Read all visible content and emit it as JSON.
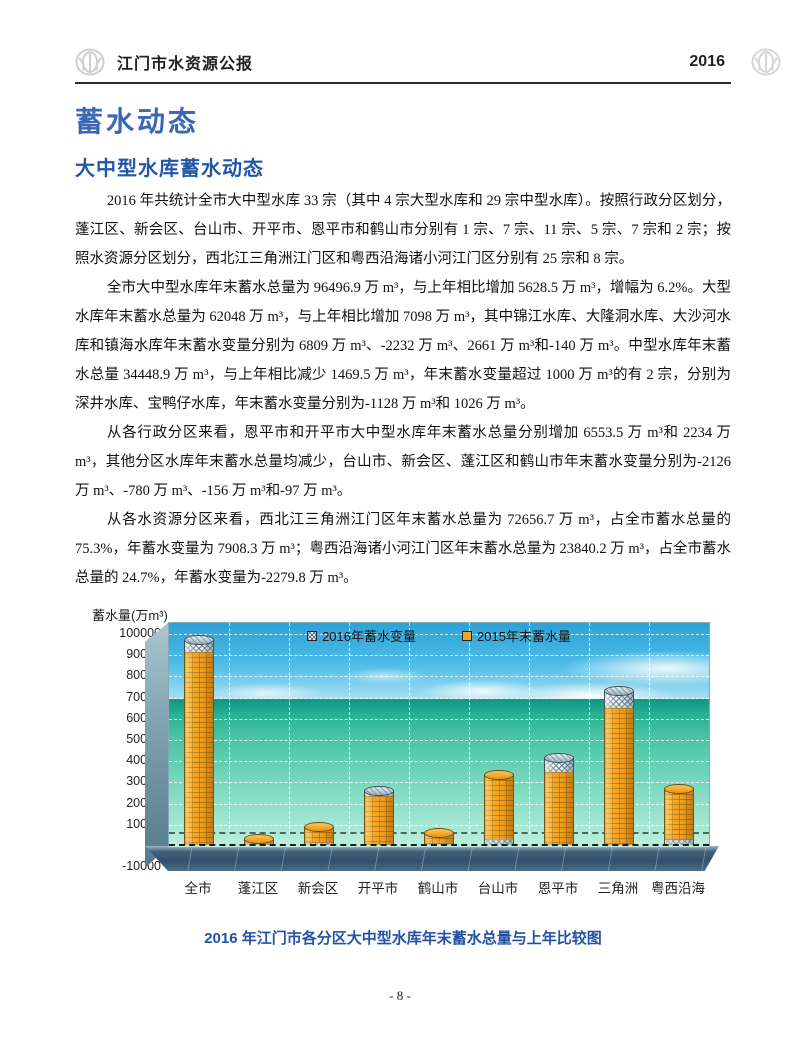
{
  "header": {
    "title": "江门市水资源公报",
    "year": "2016"
  },
  "headings": {
    "h1": "蓄水动态",
    "h2": "大中型水库蓄水动态"
  },
  "paragraphs": {
    "p1": "2016 年共统计全市大中型水库 33 宗（其中 4 宗大型水库和 29 宗中型水库）。按照行政分区划分，蓬江区、新会区、台山市、开平市、恩平市和鹤山市分别有 1 宗、7 宗、11 宗、5 宗、7 宗和 2 宗；按照水资源分区划分，西北江三角洲江门区和粤西沿海诸小河江门区分别有 25 宗和 8 宗。",
    "p2": "全市大中型水库年末蓄水总量为 96496.9 万 m³，与上年相比增加 5628.5 万 m³，增幅为 6.2%。大型水库年末蓄水总量为 62048 万 m³，与上年相比增加 7098 万 m³，其中锦江水库、大隆洞水库、大沙河水库和镇海水库年末蓄水变量分别为 6809 万 m³、-2232 万 m³、2661 万 m³和-140 万 m³。中型水库年末蓄水总量 34448.9 万 m³，与上年相比减少 1469.5 万 m³，年末蓄水变量超过 1000 万 m³的有 2 宗，分别为深井水库、宝鸭仔水库，年末蓄水变量分别为-1128 万 m³和 1026 万 m³。",
    "p3": "从各行政分区来看，恩平市和开平市大中型水库年末蓄水总量分别增加 6553.5 万 m³和 2234 万 m³，其他分区水库年末蓄水总量均减少，台山市、新会区、蓬江区和鹤山市年末蓄水变量分别为-2126 万 m³、-780 万 m³、-156 万 m³和-97 万 m³。",
    "p4": "从各水资源分区来看，西北江三角洲江门区年末蓄水总量为 72656.7 万 m³，占全市蓄水总量的 75.3%，年蓄水变量为 7908.3 万 m³；粤西沿海诸小河江门区年末蓄水总量为 23840.2 万 m³，占全市蓄水总量的 24.7%，年蓄水变量为-2279.8 万 m³。"
  },
  "chart": {
    "axis_title": "蓄水量(万m³)",
    "legend": [
      {
        "label": "2016年蓄水变量",
        "swatch": "checker"
      },
      {
        "label": "2015年末蓄水量",
        "swatch": "orange"
      }
    ],
    "caption": "2016 年江门市各分区大中型水库年末蓄水总量与上年比较图"
  },
  "chart_data": {
    "type": "bar",
    "subtype": "3d-cylinder-stacked",
    "title": "2016 年江门市各分区大中型水库年末蓄水总量与上年比较图",
    "ylabel": "蓄水量(万m³)",
    "categories": [
      "全市",
      "蓬江区",
      "新会区",
      "开平市",
      "鹤山市",
      "台山市",
      "恩平市",
      "三角洲",
      "粤西沿海"
    ],
    "series": [
      {
        "name": "2015年末蓄水量",
        "color": "#F4A41D",
        "pattern": "brick",
        "values": [
          90868.4,
          2600,
          8500,
          23000,
          5100,
          32600,
          34300,
          64748.4,
          26120.0
        ]
      },
      {
        "name": "2016年蓄水变量",
        "color": "#EEF3F2",
        "pattern": "crosshatch",
        "values": [
          5628.5,
          -156,
          -780,
          2234,
          -97,
          -2126,
          6553.5,
          7908.3,
          -2279.8
        ]
      }
    ],
    "ylim": [
      -10000,
      100000
    ],
    "ytick_step": 10000,
    "grid": true,
    "legend_position": "top-center",
    "background": "tropical-sea-photo"
  },
  "footer": {
    "page_number": "- 8 -"
  }
}
